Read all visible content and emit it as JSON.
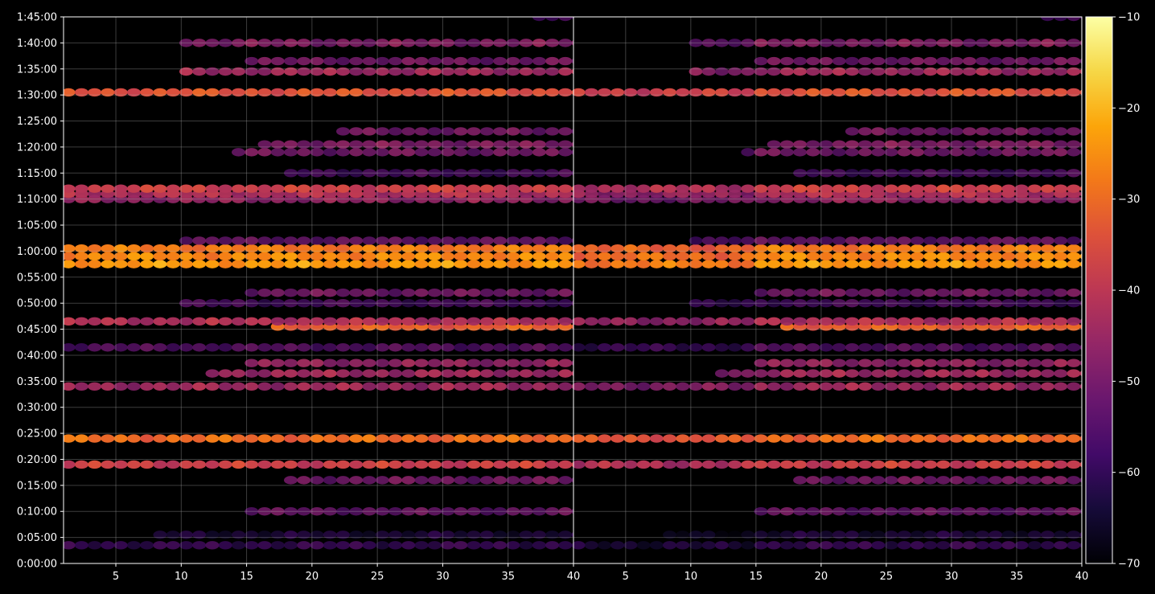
{
  "chart_data": {
    "type": "heatmap",
    "title": "",
    "xlabel": "",
    "ylabel": "",
    "panels": [
      {
        "name": "",
        "xlim": [
          1,
          40
        ],
        "x_ticks": [
          "5",
          "10",
          "15",
          "20",
          "25",
          "30",
          "35"
        ]
      },
      {
        "name": "",
        "xlim": [
          1,
          40
        ],
        "x_ticks": [
          "5",
          "10",
          "15",
          "20",
          "25",
          "30",
          "35",
          "40"
        ]
      }
    ],
    "ylim_seconds": [
      0,
      6300
    ],
    "y_ticks": [
      "0:00:00",
      "0:05:00",
      "0:10:00",
      "0:15:00",
      "0:20:00",
      "0:25:00",
      "0:30:00",
      "0:35:00",
      "0:40:00",
      "0:45:00",
      "0:50:00",
      "0:55:00",
      "1:00:00",
      "1:05:00",
      "1:10:00",
      "1:15:00",
      "1:20:00",
      "1:25:00",
      "1:30:00",
      "1:35:00",
      "1:40:00",
      "1:45:00"
    ],
    "grid": true,
    "colorbar": {
      "cmap": "inferno",
      "range": [
        -70,
        -10
      ],
      "ticks": [
        "−70",
        "−60",
        "−50",
        "−40",
        "−30",
        "−20",
        "−10"
      ]
    },
    "bands": [
      {
        "time": "0:03:30",
        "level": -58,
        "x_from": 1,
        "x_to": 40
      },
      {
        "time": "0:05:30",
        "level": -62,
        "x_from": 8,
        "x_to": 40
      },
      {
        "time": "0:10:00",
        "level": -52,
        "x_from": 15,
        "x_to": 40
      },
      {
        "time": "0:16:00",
        "level": -50,
        "x_from": 18,
        "x_to": 40
      },
      {
        "time": "0:19:00",
        "level": -38,
        "x_from": 1,
        "x_to": 40
      },
      {
        "time": "0:24:00",
        "level": -30,
        "x_from": 1,
        "x_to": 40
      },
      {
        "time": "0:34:00",
        "level": -44,
        "x_from": 1,
        "x_to": 40
      },
      {
        "time": "0:36:30",
        "level": -44,
        "x_from": 12,
        "x_to": 40
      },
      {
        "time": "0:38:30",
        "level": -46,
        "x_from": 15,
        "x_to": 40
      },
      {
        "time": "0:41:30",
        "level": -54,
        "x_from": 1,
        "x_to": 40
      },
      {
        "time": "0:45:30",
        "level": -32,
        "x_from": 17,
        "x_to": 40
      },
      {
        "time": "0:46:30",
        "level": -42,
        "x_from": 1,
        "x_to": 40
      },
      {
        "time": "0:50:00",
        "level": -56,
        "x_from": 10,
        "x_to": 40
      },
      {
        "time": "0:52:00",
        "level": -50,
        "x_from": 15,
        "x_to": 40
      },
      {
        "time": "0:57:30",
        "level": -24,
        "x_from": 1,
        "x_to": 40
      },
      {
        "time": "0:59:00",
        "level": -26,
        "x_from": 1,
        "x_to": 40
      },
      {
        "time": "1:00:30",
        "level": -28,
        "x_from": 1,
        "x_to": 40
      },
      {
        "time": "1:02:00",
        "level": -52,
        "x_from": 10,
        "x_to": 40
      },
      {
        "time": "1:10:00",
        "level": -46,
        "x_from": 1,
        "x_to": 40
      },
      {
        "time": "1:11:00",
        "level": -42,
        "x_from": 1,
        "x_to": 40
      },
      {
        "time": "1:12:00",
        "level": -38,
        "x_from": 1,
        "x_to": 40
      },
      {
        "time": "1:15:00",
        "level": -56,
        "x_from": 18,
        "x_to": 40
      },
      {
        "time": "1:19:00",
        "level": -50,
        "x_from": 14,
        "x_to": 40
      },
      {
        "time": "1:20:30",
        "level": -48,
        "x_from": 16,
        "x_to": 40
      },
      {
        "time": "1:23:00",
        "level": -50,
        "x_from": 22,
        "x_to": 40
      },
      {
        "time": "1:30:30",
        "level": -34,
        "x_from": 1,
        "x_to": 40
      },
      {
        "time": "1:34:30",
        "level": -44,
        "x_from": 10,
        "x_to": 40
      },
      {
        "time": "1:36:30",
        "level": -50,
        "x_from": 15,
        "x_to": 40
      },
      {
        "time": "1:40:00",
        "level": -48,
        "x_from": 10,
        "x_to": 40
      },
      {
        "time": "1:45:00",
        "level": -56,
        "x_from": 37,
        "x_to": 40
      }
    ]
  }
}
